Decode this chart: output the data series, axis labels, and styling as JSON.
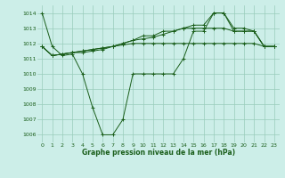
{
  "title": "Graphe pression niveau de la mer (hPa)",
  "background_color": "#cceee8",
  "grid_color": "#99ccbb",
  "line_color": "#1a5e1a",
  "xlim": [
    -0.5,
    23.5
  ],
  "ylim": [
    1005.5,
    1014.5
  ],
  "xticks": [
    0,
    1,
    2,
    3,
    4,
    5,
    6,
    7,
    8,
    9,
    10,
    11,
    12,
    13,
    14,
    15,
    16,
    17,
    18,
    19,
    20,
    21,
    22,
    23
  ],
  "yticks": [
    1006,
    1007,
    1008,
    1009,
    1010,
    1011,
    1012,
    1013,
    1014
  ],
  "series": [
    [
      1014.0,
      1011.8,
      1011.2,
      1011.3,
      1010.0,
      1007.8,
      1006.0,
      1006.0,
      1007.0,
      1010.0,
      1010.0,
      1010.0,
      1010.0,
      1010.0,
      1011.0,
      1012.8,
      1012.8,
      1014.0,
      1014.0,
      1012.8,
      1012.8,
      1012.8,
      1011.8,
      1011.8
    ],
    [
      1011.8,
      1011.2,
      1011.3,
      1011.4,
      1011.4,
      1011.5,
      1011.6,
      1011.8,
      1012.0,
      1012.2,
      1012.3,
      1012.4,
      1012.6,
      1012.8,
      1013.0,
      1013.0,
      1013.0,
      1013.0,
      1013.0,
      1012.8,
      1012.8,
      1012.8,
      1011.8,
      1011.8
    ],
    [
      1011.8,
      1011.2,
      1011.3,
      1011.4,
      1011.5,
      1011.6,
      1011.7,
      1011.8,
      1011.9,
      1012.0,
      1012.0,
      1012.0,
      1012.0,
      1012.0,
      1012.0,
      1012.0,
      1012.0,
      1012.0,
      1012.0,
      1012.0,
      1012.0,
      1012.0,
      1011.8,
      1011.8
    ],
    [
      1011.8,
      1011.2,
      1011.3,
      1011.4,
      1011.5,
      1011.6,
      1011.7,
      1011.8,
      1012.0,
      1012.2,
      1012.5,
      1012.5,
      1012.8,
      1012.8,
      1013.0,
      1013.2,
      1013.2,
      1014.0,
      1014.0,
      1013.0,
      1013.0,
      1012.8,
      1011.8,
      1011.8
    ]
  ]
}
